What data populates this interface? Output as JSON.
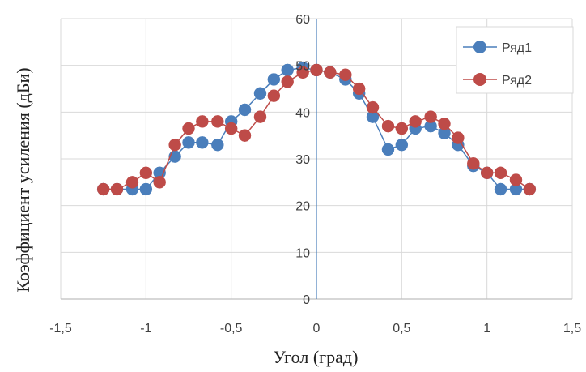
{
  "chart_data": {
    "type": "line",
    "xlabel": "Угол (град)",
    "ylabel": "Коэффициент усиления (дБи)",
    "xlim": [
      -1.5,
      1.5
    ],
    "ylim": [
      0,
      60
    ],
    "xticks": [
      -1.5,
      -1,
      -0.5,
      0,
      0.5,
      1,
      1.5
    ],
    "xtick_labels": [
      "-1,5",
      "-1",
      "-0,5",
      "0",
      "0,5",
      "1",
      "1,5"
    ],
    "yticks": [
      0,
      10,
      20,
      30,
      40,
      50,
      60
    ],
    "ytick_labels": [
      "0",
      "10",
      "20",
      "30",
      "40",
      "50",
      "60"
    ],
    "grid": true,
    "legend_position": "top-right",
    "series": [
      {
        "name": "Ряд1",
        "color": "#4a7ebb",
        "x": [
          -1.25,
          -1.17,
          -1.08,
          -1.0,
          -0.92,
          -0.83,
          -0.75,
          -0.67,
          -0.58,
          -0.5,
          -0.42,
          -0.33,
          -0.25,
          -0.17,
          -0.08,
          0.0,
          0.08,
          0.17,
          0.25,
          0.33,
          0.42,
          0.5,
          0.58,
          0.67,
          0.75,
          0.83,
          0.92,
          1.0,
          1.08,
          1.17,
          1.25
        ],
        "values": [
          23.5,
          23.5,
          23.5,
          23.5,
          27,
          30.5,
          33.5,
          33.5,
          33,
          38,
          40.5,
          44,
          47,
          49,
          49.5,
          49,
          48.5,
          47,
          44,
          39,
          32,
          33,
          36.5,
          37,
          35.5,
          33,
          28.5,
          27,
          23.5,
          23.5,
          23.5
        ]
      },
      {
        "name": "Ряд2",
        "color": "#be4b48",
        "x": [
          -1.25,
          -1.17,
          -1.08,
          -1.0,
          -0.92,
          -0.83,
          -0.75,
          -0.67,
          -0.58,
          -0.5,
          -0.42,
          -0.33,
          -0.25,
          -0.17,
          -0.08,
          0.0,
          0.08,
          0.17,
          0.25,
          0.33,
          0.42,
          0.5,
          0.58,
          0.67,
          0.75,
          0.83,
          0.92,
          1.0,
          1.08,
          1.17,
          1.25
        ],
        "values": [
          23.5,
          23.5,
          25,
          27,
          25,
          33,
          36.5,
          38,
          38,
          36.5,
          35,
          39,
          43.5,
          46.5,
          48.5,
          49,
          48.5,
          48,
          45,
          41,
          37,
          36.5,
          38,
          39,
          37.5,
          34.5,
          29,
          27,
          27,
          25.5,
          23.5
        ]
      }
    ]
  }
}
